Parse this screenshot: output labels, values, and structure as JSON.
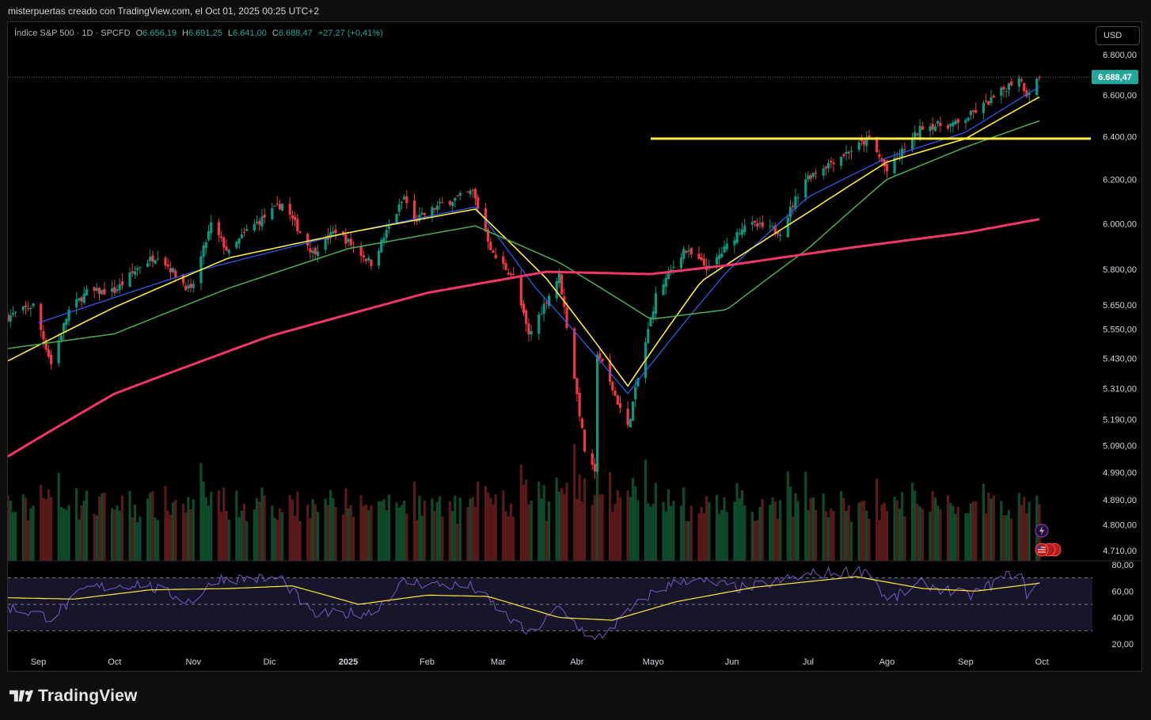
{
  "caption": "misterpuertas creado con TradingView.com, el Oct 01, 2025 00:25 UTC+2",
  "legend": {
    "symbol": "Índice S&P 500 · 1D · SPCFD",
    "open_key": "O",
    "open": "6.656,19",
    "high_key": "H",
    "high": "6.691,25",
    "low_key": "L",
    "low": "6.641,00",
    "close_key": "C",
    "close": "6.688,47",
    "change": "+27,27 (+0,41%)"
  },
  "currency_button": "USD",
  "brand": "TradingView",
  "colors": {
    "up": "#26a69a",
    "up_candle": "#089981",
    "down_candle": "#f23645",
    "ema_fast": "#2962ff",
    "ema_mid": "#ffeb3b",
    "sma_mid": "#4caf50",
    "sma_long": "#f23669",
    "support_line": "#ffeb3b",
    "rsi": "#7e57c2",
    "rsi_ma": "#ffeb3b",
    "rsi_band": "#1b1a2e"
  },
  "chart_data": {
    "type": "candlestick",
    "symbol": "Índice S&P 500 · 1D · SPCFD",
    "scale": "log",
    "y_ticks": [
      "6.800,00",
      "6.600,00",
      "6.400,00",
      "6.200,00",
      "6.000,00",
      "5.800,00",
      "5.650,00",
      "5.550,00",
      "5.430,00",
      "5.310,00",
      "5.190,00",
      "5.090,00",
      "4.990,00",
      "4.890,00",
      "4.800,00",
      "4.710,00"
    ],
    "y_tick_values": [
      6800,
      6600,
      6400,
      6200,
      6000,
      5800,
      5650,
      5550,
      5430,
      5310,
      5190,
      5090,
      4990,
      4890,
      4800,
      4710
    ],
    "last_price_label": "6.688,47",
    "last_price": 6688.47,
    "x_ticks": [
      "Sep",
      "Oct",
      "Nov",
      "Dic",
      "2025",
      "Feb",
      "Mar",
      "Abr",
      "Mayo",
      "Jun",
      "Jul",
      "Ago",
      "Sep",
      "Oct"
    ],
    "x_tick_dates": [
      "2024-09-01",
      "2024-10-01",
      "2024-11-01",
      "2024-12-01",
      "2025-01-01",
      "2025-02-01",
      "2025-03-01",
      "2025-04-01",
      "2025-05-01",
      "2025-06-01",
      "2025-07-01",
      "2025-08-01",
      "2025-09-01",
      "2025-10-01"
    ],
    "x_range": [
      "2024-08-20",
      "2025-09-30"
    ],
    "close_path": [
      [
        "2024-08-20",
        5600
      ],
      [
        "2024-08-30",
        5648
      ],
      [
        "2024-09-06",
        5408
      ],
      [
        "2024-09-13",
        5626
      ],
      [
        "2024-09-20",
        5702
      ],
      [
        "2024-10-01",
        5708
      ],
      [
        "2024-10-11",
        5815
      ],
      [
        "2024-10-18",
        5864
      ],
      [
        "2024-10-31",
        5705
      ],
      [
        "2024-11-08",
        5995
      ],
      [
        "2024-11-15",
        5870
      ],
      [
        "2024-11-22",
        5969
      ],
      [
        "2024-12-06",
        6090
      ],
      [
        "2024-12-18",
        5872
      ],
      [
        "2024-12-27",
        5970
      ],
      [
        "2025-01-10",
        5827
      ],
      [
        "2025-01-23",
        6118
      ],
      [
        "2025-01-27",
        6012
      ],
      [
        "2025-02-06",
        6083
      ],
      [
        "2025-02-19",
        6144
      ],
      [
        "2025-02-27",
        5861
      ],
      [
        "2025-03-07",
        5770
      ],
      [
        "2025-03-13",
        5521
      ],
      [
        "2025-03-25",
        5776
      ],
      [
        "2025-04-04",
        5074
      ],
      [
        "2025-04-08",
        4982
      ],
      [
        "2025-04-09",
        5456
      ],
      [
        "2025-04-21",
        5158
      ],
      [
        "2025-05-02",
        5686
      ],
      [
        "2025-05-13",
        5886
      ],
      [
        "2025-05-23",
        5802
      ],
      [
        "2025-06-06",
        6000
      ],
      [
        "2025-06-20",
        5967
      ],
      [
        "2025-06-30",
        6205
      ],
      [
        "2025-07-10",
        6280
      ],
      [
        "2025-07-25",
        6388
      ],
      [
        "2025-08-01",
        6238
      ],
      [
        "2025-08-15",
        6449
      ],
      [
        "2025-08-29",
        6460
      ],
      [
        "2025-09-12",
        6584
      ],
      [
        "2025-09-22",
        6693
      ],
      [
        "2025-09-25",
        6605
      ],
      [
        "2025-09-30",
        6688
      ]
    ],
    "support_line": {
      "value": 6390,
      "from": "2025-04-30",
      "to": "2025-09-30"
    },
    "series": [
      {
        "values_at": [
          [
            "2024-09-01",
            5575
          ],
          [
            "2024-11-01",
            5790
          ],
          [
            "2025-01-01",
            5960
          ],
          [
            "2025-02-20",
            6075
          ],
          [
            "2025-03-15",
            5730
          ],
          [
            "2025-04-21",
            5290
          ],
          [
            "2025-05-30",
            5790
          ],
          [
            "2025-07-01",
            6120
          ],
          [
            "2025-08-01",
            6300
          ],
          [
            "2025-09-01",
            6420
          ],
          [
            "2025-09-30",
            6640
          ]
        ]
      },
      {
        "values_at": [
          [
            "2024-08-20",
            5420
          ],
          [
            "2024-10-01",
            5640
          ],
          [
            "2024-11-15",
            5850
          ],
          [
            "2025-01-01",
            5960
          ],
          [
            "2025-02-20",
            6065
          ],
          [
            "2025-03-20",
            5760
          ],
          [
            "2025-04-21",
            5320
          ],
          [
            "2025-05-20",
            5750
          ],
          [
            "2025-07-01",
            6050
          ],
          [
            "2025-08-01",
            6280
          ],
          [
            "2025-09-01",
            6390
          ],
          [
            "2025-09-30",
            6590
          ]
        ]
      },
      {
        "values_at": [
          [
            "2024-08-20",
            5470
          ],
          [
            "2024-10-01",
            5530
          ],
          [
            "2024-11-15",
            5720
          ],
          [
            "2025-01-01",
            5890
          ],
          [
            "2025-02-20",
            5990
          ],
          [
            "2025-03-25",
            5830
          ],
          [
            "2025-04-30",
            5590
          ],
          [
            "2025-05-30",
            5630
          ],
          [
            "2025-07-01",
            5890
          ],
          [
            "2025-08-01",
            6200
          ],
          [
            "2025-09-01",
            6350
          ],
          [
            "2025-09-30",
            6475
          ]
        ]
      },
      {
        "values_at": [
          [
            "2024-08-20",
            5050
          ],
          [
            "2024-10-01",
            5290
          ],
          [
            "2024-12-01",
            5520
          ],
          [
            "2025-02-01",
            5700
          ],
          [
            "2025-03-20",
            5790
          ],
          [
            "2025-04-30",
            5780
          ],
          [
            "2025-06-01",
            5820
          ],
          [
            "2025-07-15",
            5890
          ],
          [
            "2025-09-01",
            5960
          ],
          [
            "2025-09-30",
            6020
          ]
        ]
      }
    ],
    "rsi": {
      "y_ticks": [
        "80,00",
        "60,00",
        "40,00",
        "20,00"
      ],
      "y_tick_values": [
        80,
        60,
        40,
        20
      ],
      "band": [
        30,
        70
      ],
      "path": [
        [
          "2024-08-20",
          48
        ],
        [
          "2024-09-06",
          40
        ],
        [
          "2024-09-20",
          62
        ],
        [
          "2024-10-11",
          66
        ],
        [
          "2024-10-31",
          52
        ],
        [
          "2024-11-11",
          70
        ],
        [
          "2024-12-06",
          69
        ],
        [
          "2024-12-18",
          42
        ],
        [
          "2025-01-10",
          44
        ],
        [
          "2025-01-23",
          67
        ],
        [
          "2025-02-19",
          63
        ],
        [
          "2025-03-13",
          27
        ],
        [
          "2025-03-25",
          47
        ],
        [
          "2025-04-08",
          22
        ],
        [
          "2025-04-30",
          58
        ],
        [
          "2025-05-13",
          69
        ],
        [
          "2025-06-06",
          62
        ],
        [
          "2025-07-03",
          73
        ],
        [
          "2025-07-25",
          76
        ],
        [
          "2025-08-01",
          52
        ],
        [
          "2025-08-15",
          66
        ],
        [
          "2025-09-02",
          56
        ],
        [
          "2025-09-22",
          76
        ],
        [
          "2025-09-25",
          58
        ],
        [
          "2025-09-30",
          66
        ]
      ],
      "ma_path": [
        [
          "2024-08-20",
          55
        ],
        [
          "2024-09-15",
          54
        ],
        [
          "2024-10-15",
          61
        ],
        [
          "2024-11-15",
          62
        ],
        [
          "2024-12-10",
          64
        ],
        [
          "2025-01-05",
          50
        ],
        [
          "2025-02-01",
          57
        ],
        [
          "2025-02-25",
          56
        ],
        [
          "2025-03-25",
          40
        ],
        [
          "2025-04-15",
          38
        ],
        [
          "2025-05-10",
          52
        ],
        [
          "2025-06-10",
          63
        ],
        [
          "2025-07-20",
          71
        ],
        [
          "2025-08-15",
          62
        ],
        [
          "2025-09-05",
          60
        ],
        [
          "2025-09-30",
          66
        ]
      ]
    }
  }
}
